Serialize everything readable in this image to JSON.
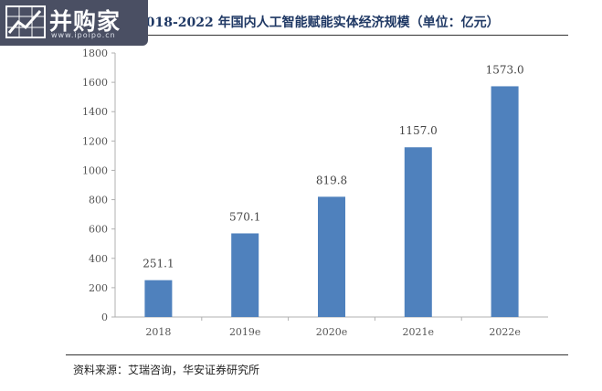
{
  "logo": {
    "text": "并购家",
    "url": "www.ipoipo.cn"
  },
  "source": "资料来源：艾瑞咨询，华安证券研究所",
  "chart_data": {
    "type": "bar",
    "title": "2018-2022 年国内人工智能赋能实体经济规模（单位：亿元）",
    "categories": [
      "2018",
      "2019e",
      "2020e",
      "2021e",
      "2022e"
    ],
    "values": [
      251.1,
      570.1,
      819.8,
      1157.0,
      1573.0
    ],
    "value_labels": [
      "251.1",
      "570.1",
      "819.8",
      "1157.0",
      "1573.0"
    ],
    "y_ticks": [
      0,
      200,
      400,
      600,
      800,
      1000,
      1200,
      1400,
      1600,
      1800
    ],
    "ylim": [
      0,
      1800
    ],
    "bar_color": "#4f81bd",
    "grid": false,
    "legend": "none"
  }
}
